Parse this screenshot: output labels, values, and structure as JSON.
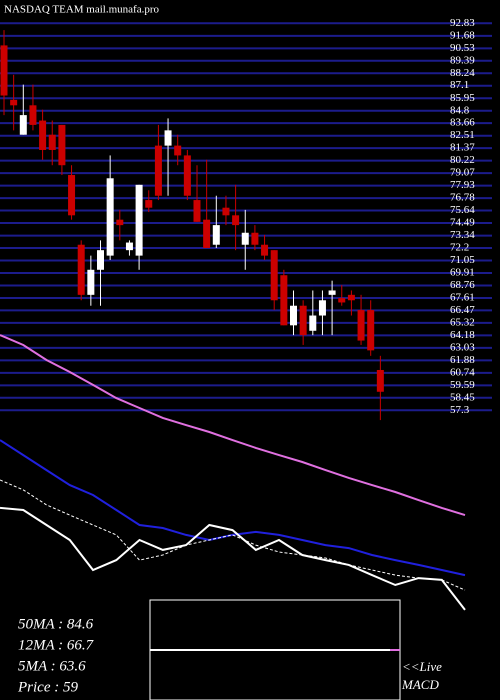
{
  "chart_data": {
    "type": "candlestick",
    "title": "NASDAQ TEAM mail.munafa.pro",
    "ylim": [
      56.5,
      93.5
    ],
    "yticks": [
      92.83,
      91.68,
      90.53,
      89.39,
      88.24,
      87.1,
      85.95,
      84.8,
      83.66,
      82.51,
      81.37,
      80.22,
      79.07,
      77.93,
      76.78,
      75.64,
      74.49,
      73.34,
      72.2,
      71.05,
      69.91,
      68.76,
      67.61,
      66.47,
      65.32,
      64.18,
      63.03,
      61.88,
      60.74,
      59.59,
      58.45,
      57.3
    ],
    "grid_color": "#1c1c8c",
    "up_color": "#ffffff",
    "down_color": "#cc0000",
    "open": [
      90.8,
      85.8,
      82.6,
      85.3,
      83.9,
      82.6,
      83.5,
      78.9,
      72.5,
      67.9,
      70.2,
      71.5,
      74.8,
      72.0,
      71.5,
      76.6,
      81.6,
      81.6,
      81.6,
      80.7,
      76.6,
      74.8,
      72.5,
      75.9,
      75.2,
      72.5,
      73.6,
      72.5,
      72.0,
      69.7,
      65.1,
      66.9,
      64.6,
      66.0,
      67.9,
      67.6,
      67.9,
      66.5,
      66.5,
      61.0
    ],
    "high": [
      92.2,
      88.1,
      87.2,
      87.2,
      84.9,
      83.9,
      83.5,
      79.8,
      72.9,
      71.5,
      72.9,
      80.7,
      75.7,
      72.9,
      78.0,
      77.5,
      83.5,
      84.1,
      82.6,
      81.2,
      79.8,
      80.3,
      77.0,
      77.0,
      78.0,
      75.7,
      74.3,
      73.4,
      72.0,
      70.2,
      68.3,
      67.4,
      68.3,
      68.3,
      69.2,
      68.8,
      68.3,
      67.9,
      67.4,
      62.3
    ],
    "low": [
      84.4,
      83.0,
      82.6,
      83.0,
      80.3,
      79.8,
      78.9,
      74.8,
      67.4,
      66.9,
      66.9,
      71.1,
      72.9,
      71.5,
      70.2,
      75.5,
      76.6,
      77.0,
      79.8,
      76.6,
      74.6,
      72.2,
      72.2,
      74.3,
      72.0,
      70.2,
      72.0,
      71.1,
      66.5,
      65.1,
      64.2,
      63.3,
      64.2,
      64.2,
      64.2,
      66.9,
      66.0,
      63.3,
      62.3,
      56.4
    ],
    "close": [
      86.2,
      85.3,
      84.4,
      83.5,
      81.2,
      81.2,
      79.8,
      75.2,
      67.9,
      70.2,
      72.0,
      78.6,
      74.3,
      72.7,
      78.0,
      75.9,
      77.0,
      83.0,
      80.7,
      77.0,
      74.6,
      72.2,
      74.3,
      75.2,
      74.3,
      73.6,
      72.5,
      71.5,
      67.4,
      65.1,
      66.9,
      64.2,
      66.0,
      67.4,
      68.3,
      67.2,
      67.4,
      63.7,
      62.8,
      59.0
    ],
    "ma_panel": {
      "ylim": [
        0,
        100
      ],
      "series": [
        {
          "color": "#e070e0",
          "dash": false,
          "values": [
            98.3,
            95,
            90,
            86,
            81.7,
            77.3,
            74,
            70.7,
            68.3,
            66,
            63.3,
            60.7,
            58.3,
            56,
            53.3,
            50.7,
            48.3,
            46,
            43.3,
            40.7,
            38.3
          ]
        },
        {
          "color": "#2020dd",
          "dash": false,
          "values": [
            63.3,
            58.3,
            53.3,
            48.3,
            45,
            40,
            35,
            34,
            31.7,
            30,
            31.7,
            32.7,
            31.7,
            30,
            28.3,
            27.3,
            25,
            23.3,
            21.7,
            20,
            18.3
          ]
        },
        {
          "color": "#ffffff",
          "dash": true,
          "values": [
            50,
            46.7,
            41.7,
            38.3,
            35,
            31.7,
            23.3,
            25,
            28.3,
            30,
            31.7,
            28.3,
            26,
            25,
            24,
            21.7,
            20,
            18.3,
            17.3,
            16.7,
            13.3
          ]
        },
        {
          "color": "#ffffff",
          "dash": false,
          "values": [
            40.7,
            40,
            35,
            30,
            20,
            23.3,
            30,
            26.7,
            28.3,
            35,
            33.3,
            26.7,
            30,
            25,
            23.3,
            21.7,
            18.3,
            15,
            17.3,
            16.7,
            6.7
          ]
        }
      ]
    },
    "info": [
      "50MA : 84.6",
      "12MA : 66.7",
      "5MA : 63.6",
      "Price   : 59"
    ],
    "macd_label": [
      "<<Live",
      "MACD"
    ]
  }
}
